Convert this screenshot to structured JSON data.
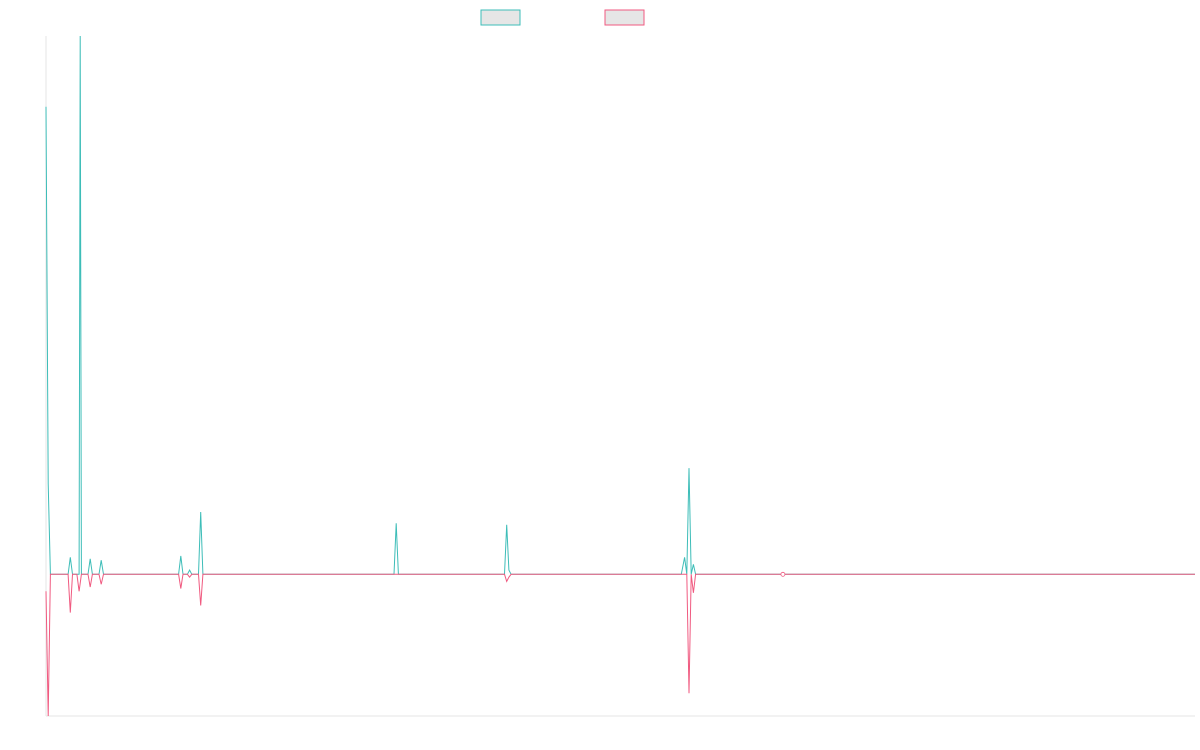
{
  "chart_data": {
    "type": "line",
    "xlim": [
      0,
      1040
    ],
    "ylim": [
      -1.0,
      3.8
    ],
    "legend_position": "top-center",
    "grid": false,
    "series": [
      {
        "color": "#3dbdb8",
        "points": [
          [
            0,
            3.3
          ],
          [
            2,
            0.64
          ],
          [
            4,
            0
          ],
          [
            20,
            0
          ],
          [
            22,
            0.12
          ],
          [
            24,
            0
          ],
          [
            30,
            0
          ],
          [
            31,
            3.8
          ],
          [
            32,
            0
          ],
          [
            38,
            0
          ],
          [
            40,
            0.11
          ],
          [
            42,
            0
          ],
          [
            48,
            0
          ],
          [
            50,
            0.1
          ],
          [
            52,
            0
          ],
          [
            120,
            0
          ],
          [
            122,
            0.13
          ],
          [
            124,
            0
          ],
          [
            128,
            0
          ],
          [
            130,
            0.03
          ],
          [
            132,
            0
          ],
          [
            138,
            0
          ],
          [
            140,
            0.44
          ],
          [
            142,
            0
          ],
          [
            315,
            0
          ],
          [
            317,
            0.36
          ],
          [
            319,
            0
          ],
          [
            415,
            0
          ],
          [
            417,
            0.35
          ],
          [
            419,
            0.03
          ],
          [
            421,
            0
          ],
          [
            575,
            0
          ],
          [
            578,
            0.12
          ],
          [
            580,
            0
          ],
          [
            582,
            0.75
          ],
          [
            584,
            0
          ],
          [
            586,
            0.07
          ],
          [
            588,
            0
          ],
          [
            1040,
            0
          ]
        ]
      },
      {
        "color": "#f05a80",
        "points": [
          [
            0,
            -0.12
          ],
          [
            2,
            -1.0
          ],
          [
            4,
            0
          ],
          [
            20,
            0
          ],
          [
            22,
            -0.27
          ],
          [
            24,
            0
          ],
          [
            28,
            0
          ],
          [
            30,
            -0.12
          ],
          [
            32,
            0
          ],
          [
            38,
            0
          ],
          [
            40,
            -0.09
          ],
          [
            42,
            0
          ],
          [
            48,
            0
          ],
          [
            50,
            -0.07
          ],
          [
            52,
            0
          ],
          [
            120,
            0
          ],
          [
            122,
            -0.1
          ],
          [
            124,
            0
          ],
          [
            128,
            0
          ],
          [
            130,
            -0.02
          ],
          [
            132,
            0
          ],
          [
            138,
            0
          ],
          [
            140,
            -0.22
          ],
          [
            142,
            0
          ],
          [
            415,
            0
          ],
          [
            417,
            -0.05
          ],
          [
            419,
            -0.02
          ],
          [
            421,
            0
          ],
          [
            580,
            0
          ],
          [
            582,
            -0.84
          ],
          [
            584,
            0
          ],
          [
            586,
            -0.13
          ],
          [
            588,
            0
          ],
          [
            665,
            0
          ],
          [
            667,
            0.01
          ],
          [
            669,
            0
          ],
          [
            1040,
            0
          ]
        ]
      }
    ]
  }
}
